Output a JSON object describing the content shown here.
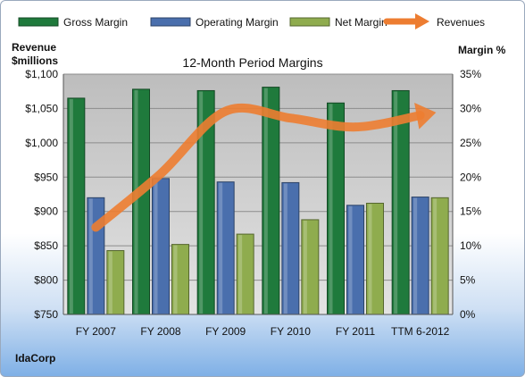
{
  "chart_data": {
    "type": "bar",
    "title": "12-Month Period Margins",
    "company": "IdaCorp",
    "left_axis_label_line1": "Revenue",
    "left_axis_label_line2": "$millions",
    "right_axis_label": "Margin %",
    "categories": [
      "FY 2007",
      "FY 2008",
      "FY 2009",
      "FY 2010",
      "FY 2011",
      "TTM 6-2012"
    ],
    "left_axis": {
      "min": 750,
      "max": 1100,
      "step": 50,
      "tick_labels": [
        "$750",
        "$800",
        "$850",
        "$900",
        "$950",
        "$1,000",
        "$1,050",
        "$1,100"
      ]
    },
    "right_axis": {
      "min": 0,
      "max": 35,
      "step": 5,
      "tick_labels": [
        "0%",
        "5%",
        "10%",
        "15%",
        "20%",
        "25%",
        "30%",
        "35%"
      ]
    },
    "series": [
      {
        "name": "Gross Margin",
        "type": "bar",
        "axis": "right",
        "color": "#1f7a3c",
        "values": [
          31.5,
          32.8,
          32.6,
          33.1,
          30.8,
          32.6
        ]
      },
      {
        "name": "Operating Margin",
        "type": "bar",
        "axis": "right",
        "color": "#4a6fad",
        "values": [
          17.0,
          19.8,
          19.3,
          19.2,
          15.9,
          17.1
        ]
      },
      {
        "name": "Net Margin",
        "type": "bar",
        "axis": "right",
        "color": "#8fac4e",
        "values": [
          9.3,
          10.2,
          11.7,
          13.8,
          16.2,
          17.0
        ]
      },
      {
        "name": "Revenues",
        "type": "line",
        "axis": "left",
        "color": "#ed7d31",
        "values": [
          877,
          955,
          1046,
          1036,
          1023,
          1040
        ]
      }
    ],
    "legend_position": "top",
    "grid": true
  }
}
